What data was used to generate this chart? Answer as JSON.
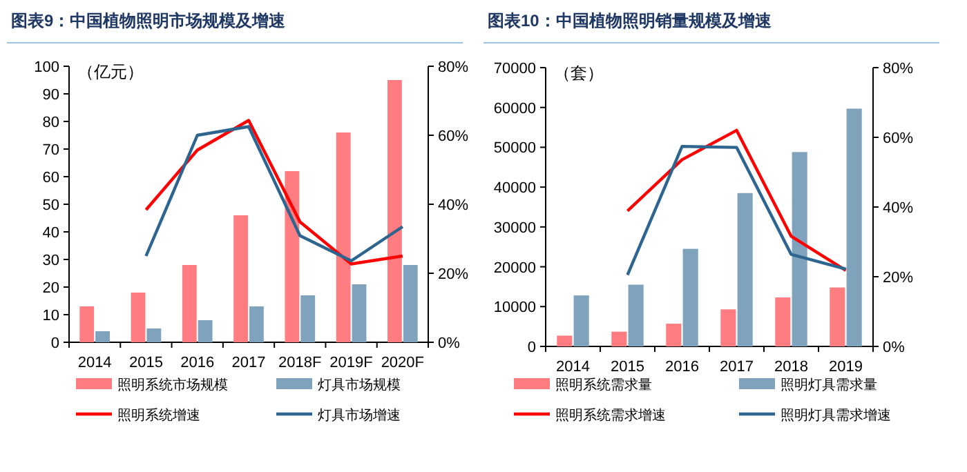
{
  "chart_data": [
    {
      "type": "bar",
      "title": "图表9：中国植物照明市场规模及增速",
      "ylabel": "（亿元）",
      "categories": [
        "2014",
        "2015",
        "2016",
        "2017",
        "2018F",
        "2019F",
        "2020F"
      ],
      "series": [
        {
          "name": "照明系统市场规模",
          "color": "#ff7c80",
          "values": [
            13,
            18,
            28,
            46,
            62,
            76,
            95
          ]
        },
        {
          "name": "灯具市场规模",
          "color": "#7fa3bd",
          "values": [
            4,
            5,
            8,
            13,
            17,
            21,
            28
          ]
        },
        {
          "name": "照明系统增速",
          "type": "line",
          "axis": "y2",
          "color": "#ff0000",
          "values": [
            null,
            38.4,
            55.7,
            64.3,
            34.9,
            22.7,
            25
          ]
        },
        {
          "name": "灯具市场增速",
          "type": "line",
          "axis": "y2",
          "color": "#2e6590",
          "values": [
            null,
            25,
            60,
            62.5,
            30.9,
            23.6,
            33.5
          ]
        }
      ],
      "ylim": [
        0,
        100
      ],
      "yticks": [
        0,
        10,
        20,
        30,
        40,
        50,
        60,
        70,
        80,
        90,
        100
      ],
      "y2lim": [
        0,
        80
      ],
      "y2ticks": [
        {
          "value": 0,
          "label": "0%"
        },
        {
          "value": 20,
          "label": "20%"
        },
        {
          "value": 40,
          "label": "40%"
        },
        {
          "value": 60,
          "label": "60%"
        },
        {
          "value": 80,
          "label": "80%"
        }
      ],
      "legend": "bottom",
      "grid": false,
      "marker": "none"
    },
    {
      "type": "bar",
      "title": "图表10：中国植物照明销量规模及增速",
      "ylabel": "（套）",
      "categories": [
        "2014",
        "2015",
        "2016",
        "2017",
        "2018",
        "2019"
      ],
      "series": [
        {
          "name": "照明系统需求量",
          "color": "#ff7c80",
          "values": [
            2700,
            3700,
            5700,
            9300,
            12300,
            14800
          ]
        },
        {
          "name": "照明灯具需求量",
          "color": "#7fa3bd",
          "values": [
            12800,
            15500,
            24500,
            38500,
            48800,
            59700
          ]
        },
        {
          "name": "照明系统需求增速",
          "type": "line",
          "axis": "y2",
          "color": "#ff0000",
          "values": [
            null,
            38.9,
            53.6,
            62,
            31.6,
            21.8
          ]
        },
        {
          "name": "照明灯具需求增速",
          "type": "line",
          "axis": "y2",
          "color": "#2e6590",
          "values": [
            null,
            20.5,
            57.4,
            57.1,
            26.4,
            22.2
          ]
        }
      ],
      "ylim": [
        0,
        70000
      ],
      "yticks": [
        0,
        10000,
        20000,
        30000,
        40000,
        50000,
        60000,
        70000
      ],
      "y2lim": [
        0,
        80
      ],
      "y2ticks": [
        {
          "value": 0,
          "label": "0%"
        },
        {
          "value": 20,
          "label": "20%"
        },
        {
          "value": 40,
          "label": "40%"
        },
        {
          "value": 60,
          "label": "60%"
        },
        {
          "value": 80,
          "label": "80%"
        }
      ],
      "legend": "bottom",
      "grid": false,
      "marker": "none"
    }
  ]
}
